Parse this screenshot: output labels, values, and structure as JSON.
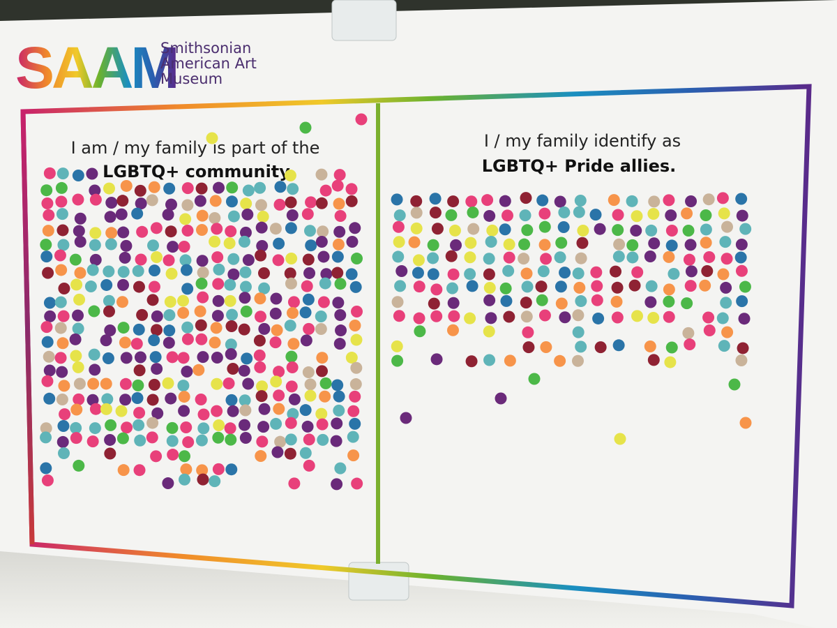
{
  "logo": {
    "mark": "SAAM",
    "name_lines": [
      "Smithsonian",
      "American Art",
      "Museum"
    ]
  },
  "panels": [
    {
      "heading_line1": "I am / my family is part of the",
      "heading_line2": "LGBTQ+ community."
    },
    {
      "heading_line1": "I / my family identify as",
      "heading_line2": "LGBTQ+ Pride allies."
    }
  ]
}
